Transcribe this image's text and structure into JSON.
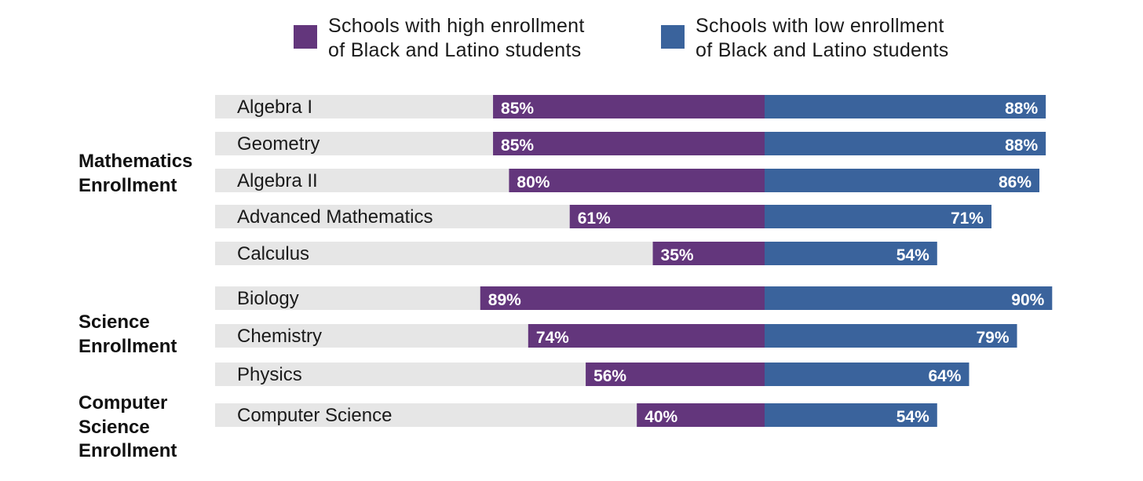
{
  "legend": {
    "high": {
      "line1": "Schools with high enrollment",
      "line2": "of Black and Latino students",
      "color": "#63367c"
    },
    "low": {
      "line1": "Schools with low enrollment",
      "line2": "of Black and Latino students",
      "color": "#3a639c"
    }
  },
  "chart_data": {
    "type": "bar",
    "orientation": "horizontal-diverging",
    "categories": [
      "Algebra I",
      "Geometry",
      "Algebra II",
      "Advanced Mathematics",
      "Calculus",
      "Biology",
      "Chemistry",
      "Physics",
      "Computer Science"
    ],
    "series": [
      {
        "name": "Schools with high enrollment of Black and Latino students",
        "values": [
          85,
          85,
          80,
          61,
          35,
          89,
          74,
          56,
          40
        ],
        "color": "#63367c"
      },
      {
        "name": "Schools with low enrollment of Black and Latino students",
        "values": [
          88,
          88,
          86,
          71,
          54,
          90,
          79,
          64,
          54
        ],
        "color": "#3a639c"
      }
    ],
    "value_labels": {
      "high": [
        "85%",
        "85%",
        "80%",
        "61%",
        "35%",
        "89%",
        "74%",
        "56%",
        "40%"
      ],
      "low": [
        "88%",
        "88%",
        "86%",
        "71%",
        "54%",
        "90%",
        "79%",
        "64%",
        "54%"
      ]
    },
    "groups": [
      {
        "label": [
          "Mathematics",
          "Enrollment"
        ],
        "categories": [
          "Algebra I",
          "Geometry",
          "Algebra II",
          "Advanced Mathematics",
          "Calculus"
        ]
      },
      {
        "label": [
          "Science",
          "Enrollment"
        ],
        "categories": [
          "Biology",
          "Chemistry",
          "Physics"
        ]
      },
      {
        "label": [
          "Computer",
          "Science",
          "Enrollment"
        ],
        "categories": [
          "Computer Science"
        ]
      }
    ],
    "unit": "%",
    "background_bar_color": "#e6e6e6",
    "grid": false
  }
}
